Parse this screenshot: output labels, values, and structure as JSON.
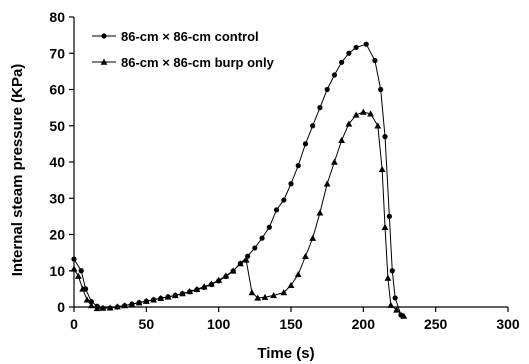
{
  "chart_data": {
    "type": "line",
    "title": "",
    "xlabel": "Time (s)",
    "ylabel": "Internal steam pressure (KPa)",
    "xlim": [
      0,
      300
    ],
    "ylim": [
      0,
      80
    ],
    "xticks": [
      0,
      50,
      100,
      150,
      200,
      250,
      300
    ],
    "yticks": [
      0,
      10,
      20,
      30,
      40,
      50,
      60,
      70,
      80
    ],
    "grid": false,
    "legend_position": "top-left",
    "series": [
      {
        "name": "86-cm × 86-cm control",
        "marker": "circle",
        "color": "#000000",
        "points": [
          [
            0,
            13.2
          ],
          [
            5,
            10
          ],
          [
            8,
            5
          ],
          [
            12,
            1.5
          ],
          [
            16,
            0.2
          ],
          [
            20,
            -0.3
          ],
          [
            25,
            -0.3
          ],
          [
            30,
            0
          ],
          [
            35,
            0.4
          ],
          [
            40,
            0.8
          ],
          [
            45,
            1.2
          ],
          [
            50,
            1.6
          ],
          [
            55,
            2.0
          ],
          [
            60,
            2.4
          ],
          [
            65,
            2.8
          ],
          [
            70,
            3.2
          ],
          [
            75,
            3.7
          ],
          [
            80,
            4.2
          ],
          [
            85,
            4.8
          ],
          [
            90,
            5.4
          ],
          [
            95,
            6.2
          ],
          [
            100,
            7.2
          ],
          [
            105,
            8.4
          ],
          [
            110,
            9.9
          ],
          [
            115,
            12.0
          ],
          [
            120,
            14.0
          ],
          [
            125,
            16.3
          ],
          [
            130,
            19.0
          ],
          [
            135,
            22.0
          ],
          [
            140,
            26.8
          ],
          [
            145,
            29.5
          ],
          [
            150,
            34.0
          ],
          [
            155,
            39.0
          ],
          [
            160,
            45.0
          ],
          [
            165,
            50.0
          ],
          [
            170,
            55.0
          ],
          [
            175,
            60.0
          ],
          [
            180,
            64.0
          ],
          [
            185,
            67.5
          ],
          [
            190,
            70.0
          ],
          [
            195,
            71.6
          ],
          [
            202,
            72.5
          ],
          [
            208,
            68.0
          ],
          [
            212,
            60.0
          ],
          [
            215,
            47.0
          ],
          [
            218,
            25.0
          ],
          [
            220,
            10.0
          ],
          [
            222,
            2.5
          ],
          [
            226,
            -2.2
          ]
        ]
      },
      {
        "name": "86-cm × 86-cm burp only",
        "marker": "triangle",
        "color": "#000000",
        "points": [
          [
            0,
            10.5
          ],
          [
            3,
            8.5
          ],
          [
            6,
            5.0
          ],
          [
            9,
            2.0
          ],
          [
            12,
            0.4
          ],
          [
            16,
            -0.4
          ],
          [
            20,
            -0.3
          ],
          [
            25,
            -0.2
          ],
          [
            30,
            0.1
          ],
          [
            35,
            0.4
          ],
          [
            40,
            0.8
          ],
          [
            45,
            1.2
          ],
          [
            50,
            1.6
          ],
          [
            55,
            2.0
          ],
          [
            60,
            2.4
          ],
          [
            65,
            2.8
          ],
          [
            70,
            3.2
          ],
          [
            75,
            3.7
          ],
          [
            80,
            4.3
          ],
          [
            85,
            4.9
          ],
          [
            90,
            5.6
          ],
          [
            95,
            6.4
          ],
          [
            100,
            7.4
          ],
          [
            105,
            8.6
          ],
          [
            110,
            10.0
          ],
          [
            115,
            12.0
          ],
          [
            119,
            13.0
          ],
          [
            123,
            4.0
          ],
          [
            127,
            2.5
          ],
          [
            132,
            2.7
          ],
          [
            138,
            3.2
          ],
          [
            145,
            4.0
          ],
          [
            150,
            6.0
          ],
          [
            155,
            9.0
          ],
          [
            160,
            14.0
          ],
          [
            165,
            19.0
          ],
          [
            170,
            26.0
          ],
          [
            175,
            34.0
          ],
          [
            180,
            40.0
          ],
          [
            185,
            46.0
          ],
          [
            190,
            50.5
          ],
          [
            195,
            53.0
          ],
          [
            200,
            53.8
          ],
          [
            205,
            53.3
          ],
          [
            210,
            50.0
          ],
          [
            213,
            38.0
          ],
          [
            215,
            22.0
          ],
          [
            217,
            8.0
          ],
          [
            219,
            0.5
          ],
          [
            223,
            -0.8
          ],
          [
            228,
            -2.5
          ]
        ]
      }
    ]
  }
}
